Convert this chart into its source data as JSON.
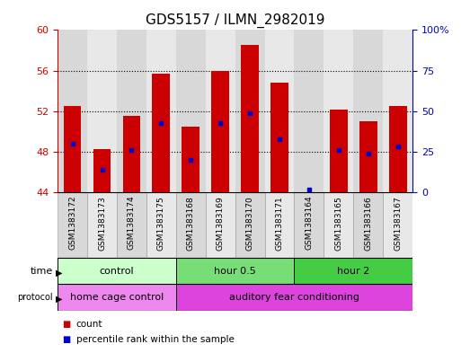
{
  "title": "GDS5157 / ILMN_2982019",
  "samples": [
    "GSM1383172",
    "GSM1383173",
    "GSM1383174",
    "GSM1383175",
    "GSM1383168",
    "GSM1383169",
    "GSM1383170",
    "GSM1383171",
    "GSM1383164",
    "GSM1383165",
    "GSM1383166",
    "GSM1383167"
  ],
  "bar_tops": [
    52.5,
    48.3,
    51.5,
    55.7,
    50.5,
    56.0,
    58.5,
    54.8,
    44.0,
    52.2,
    51.0,
    52.5
  ],
  "bar_bottom": 44,
  "percentile_values": [
    48.8,
    46.2,
    48.2,
    50.8,
    47.2,
    50.8,
    51.8,
    49.2,
    44.3,
    48.2,
    47.8,
    48.5
  ],
  "ylim_left": [
    44,
    60
  ],
  "ylim_right": [
    0,
    100
  ],
  "yticks_left": [
    44,
    48,
    52,
    56,
    60
  ],
  "yticks_right": [
    0,
    25,
    50,
    75,
    100
  ],
  "bar_color": "#cc0000",
  "percentile_color": "#0000cc",
  "col_bg_even": "#d8d8d8",
  "col_bg_odd": "#e8e8e8",
  "time_groups": [
    {
      "label": "control",
      "start": 0,
      "end": 4,
      "color": "#ccffcc"
    },
    {
      "label": "hour 0.5",
      "start": 4,
      "end": 8,
      "color": "#77dd77"
    },
    {
      "label": "hour 2",
      "start": 8,
      "end": 12,
      "color": "#44cc44"
    }
  ],
  "protocol_groups": [
    {
      "label": "home cage control",
      "start": 0,
      "end": 4,
      "color": "#ee88ee"
    },
    {
      "label": "auditory fear conditioning",
      "start": 4,
      "end": 12,
      "color": "#dd44dd"
    }
  ],
  "legend_count_color": "#cc0000",
  "legend_percentile_color": "#0000cc",
  "background_color": "#ffffff",
  "title_fontsize": 11,
  "tick_fontsize": 8,
  "annot_fontsize": 8,
  "label_fontsize": 7.5
}
